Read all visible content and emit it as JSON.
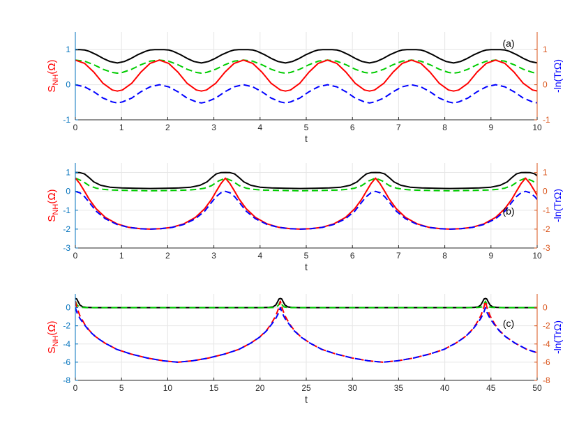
{
  "chart_data": [
    {
      "type": "line",
      "panel_label": "(a)",
      "xlabel": "t",
      "ylabel_left": "S",
      "ylabel_left_sub": "NH",
      "ylabel_left_suffix": "(Ω)",
      "ylabel_right": "-ln(TrΩ)",
      "xlim": [
        0,
        10
      ],
      "ylim": [
        -1,
        1.5
      ],
      "x_ticks": [
        0,
        1,
        2,
        3,
        4,
        5,
        6,
        7,
        8,
        9,
        10
      ],
      "y_ticks_left": [
        -1,
        0,
        1
      ],
      "y_ticks_right": [
        -1,
        0,
        1
      ],
      "grid": true,
      "period": 1.82,
      "series": [
        {
          "color": "#000000",
          "style": "solid",
          "x": [
            0,
            0.1,
            0.2,
            0.3,
            0.45,
            0.6,
            0.75,
            0.91,
            1.06,
            1.21,
            1.36,
            1.52,
            1.62,
            1.72,
            1.82
          ],
          "y": [
            1.0,
            1.0,
            0.99,
            0.95,
            0.86,
            0.75,
            0.66,
            0.62,
            0.66,
            0.75,
            0.86,
            0.95,
            0.99,
            1.0,
            1.0
          ]
        },
        {
          "color": "#00cc00",
          "style": "dashed",
          "x": [
            0,
            0.2,
            0.4,
            0.6,
            0.8,
            0.91,
            1.02,
            1.22,
            1.42,
            1.62,
            1.82
          ],
          "y": [
            0.7,
            0.67,
            0.57,
            0.44,
            0.35,
            0.33,
            0.35,
            0.44,
            0.57,
            0.67,
            0.7
          ]
        },
        {
          "color": "#ff0000",
          "style": "solid",
          "x": [
            0,
            0.2,
            0.4,
            0.6,
            0.8,
            0.91,
            1.02,
            1.22,
            1.42,
            1.62,
            1.82
          ],
          "y": [
            0.7,
            0.61,
            0.36,
            0.04,
            -0.15,
            -0.18,
            -0.15,
            0.04,
            0.36,
            0.61,
            0.7
          ]
        },
        {
          "color": "#0000ff",
          "style": "dashed",
          "x": [
            0,
            0.2,
            0.4,
            0.6,
            0.8,
            0.91,
            1.02,
            1.22,
            1.42,
            1.62,
            1.82
          ],
          "y": [
            0.0,
            -0.06,
            -0.2,
            -0.38,
            -0.49,
            -0.52,
            -0.49,
            -0.38,
            -0.2,
            -0.06,
            0.0
          ]
        }
      ]
    },
    {
      "type": "line",
      "panel_label": "(b)",
      "xlabel": "t",
      "ylabel_left": "S",
      "ylabel_left_sub": "NH",
      "ylabel_left_suffix": "(Ω)",
      "ylabel_right": "-ln(TrΩ)",
      "xlim": [
        0,
        10
      ],
      "ylim": [
        -3,
        1.5
      ],
      "x_ticks": [
        0,
        1,
        2,
        3,
        4,
        5,
        6,
        7,
        8,
        9,
        10
      ],
      "y_ticks_left": [
        -3,
        -2,
        -1,
        0,
        1
      ],
      "y_ticks_right": [
        -3,
        -2,
        -1,
        0,
        1
      ],
      "grid": true,
      "period": 3.25,
      "series": [
        {
          "color": "#000000",
          "style": "solid",
          "x": [
            0,
            0.1,
            0.2,
            0.3,
            0.4,
            0.55,
            0.75,
            1.0,
            1.3,
            1.62,
            1.95,
            2.25,
            2.5,
            2.7,
            2.85,
            2.95,
            3.05,
            3.15,
            3.25
          ],
          "y": [
            1.0,
            0.99,
            0.92,
            0.72,
            0.5,
            0.32,
            0.22,
            0.18,
            0.16,
            0.15,
            0.16,
            0.18,
            0.22,
            0.32,
            0.5,
            0.72,
            0.92,
            0.99,
            1.0
          ]
        },
        {
          "color": "#00cc00",
          "style": "dashed",
          "x": [
            0,
            0.15,
            0.3,
            0.45,
            0.6,
            0.8,
            1.1,
            1.4,
            1.62,
            1.85,
            2.15,
            2.45,
            2.65,
            2.8,
            2.95,
            3.1,
            3.25
          ],
          "y": [
            0.7,
            0.55,
            0.3,
            0.17,
            0.11,
            0.07,
            0.05,
            0.04,
            0.03,
            0.04,
            0.05,
            0.07,
            0.11,
            0.17,
            0.3,
            0.55,
            0.7
          ]
        },
        {
          "color": "#ff0000",
          "style": "solid",
          "x": [
            0,
            0.1,
            0.2,
            0.3,
            0.45,
            0.65,
            0.9,
            1.15,
            1.4,
            1.62,
            1.85,
            2.1,
            2.35,
            2.6,
            2.8,
            2.95,
            3.05,
            3.15,
            3.25
          ],
          "y": [
            0.7,
            0.4,
            0.0,
            -0.42,
            -0.92,
            -1.38,
            -1.72,
            -1.9,
            -1.98,
            -2.0,
            -1.98,
            -1.9,
            -1.72,
            -1.38,
            -0.92,
            -0.42,
            0.0,
            0.4,
            0.7
          ]
        },
        {
          "color": "#0000ff",
          "style": "dashed",
          "x": [
            0,
            0.1,
            0.2,
            0.3,
            0.45,
            0.65,
            0.9,
            1.15,
            1.4,
            1.62,
            1.85,
            2.1,
            2.35,
            2.6,
            2.8,
            2.95,
            3.05,
            3.15,
            3.25
          ],
          "y": [
            0.0,
            -0.08,
            -0.28,
            -0.58,
            -1.05,
            -1.45,
            -1.75,
            -1.91,
            -1.98,
            -2.0,
            -1.98,
            -1.91,
            -1.75,
            -1.45,
            -1.05,
            -0.58,
            -0.28,
            -0.08,
            0.0
          ]
        }
      ]
    },
    {
      "type": "line",
      "panel_label": "(c)",
      "xlabel": "t",
      "ylabel_left": "S",
      "ylabel_left_sub": "NH",
      "ylabel_left_suffix": "(Ω)",
      "ylabel_right": "-ln(TrΩ)",
      "xlim": [
        0,
        50
      ],
      "ylim": [
        -8,
        1.5
      ],
      "x_ticks": [
        0,
        5,
        10,
        15,
        20,
        25,
        30,
        35,
        40,
        45,
        50
      ],
      "y_ticks_left": [
        -8,
        -6,
        -4,
        -2,
        0
      ],
      "y_ticks_right": [
        -8,
        -6,
        -4,
        -2,
        0
      ],
      "grid": true,
      "period": 22.2,
      "series": [
        {
          "color": "#000000",
          "style": "solid",
          "x": [
            0,
            0.15,
            0.3,
            0.5,
            0.8,
            1.2,
            2.0,
            5.0,
            11.1,
            17.2,
            20.2,
            21.0,
            21.4,
            21.7,
            21.9,
            22.05,
            22.2
          ],
          "y": [
            1.0,
            0.95,
            0.65,
            0.28,
            0.08,
            0.02,
            0.0,
            0.0,
            0.0,
            0.0,
            0.0,
            0.02,
            0.08,
            0.28,
            0.65,
            0.95,
            1.0
          ]
        },
        {
          "color": "#00cc00",
          "style": "dashed",
          "x": [
            0,
            0.2,
            0.4,
            0.7,
            1.2,
            3.0,
            11.1,
            19.2,
            21.0,
            21.5,
            21.8,
            22.0,
            22.2
          ],
          "y": [
            0.7,
            0.28,
            0.08,
            0.02,
            0.0,
            0.0,
            0.0,
            0.0,
            0.0,
            0.02,
            0.08,
            0.28,
            0.7
          ]
        },
        {
          "color": "#ff0000",
          "style": "dashed",
          "x": [
            0,
            0.2,
            0.5,
            1.0,
            1.5,
            2.2,
            3.2,
            4.5,
            6.0,
            7.8,
            9.5,
            11.1,
            12.7,
            14.4,
            16.2,
            17.7,
            19.0,
            20.0,
            20.7,
            21.2,
            21.7,
            22.0,
            22.2
          ],
          "y": [
            0.7,
            -0.1,
            -0.9,
            -1.8,
            -2.5,
            -3.2,
            -3.9,
            -4.6,
            -5.1,
            -5.55,
            -5.85,
            -6.0,
            -5.85,
            -5.55,
            -5.1,
            -4.6,
            -3.9,
            -3.2,
            -2.5,
            -1.8,
            -0.9,
            -0.1,
            0.7
          ]
        },
        {
          "color": "#0000ff",
          "style": "dashed",
          "x": [
            0,
            0.2,
            0.5,
            1.0,
            1.5,
            2.2,
            3.2,
            4.5,
            6.0,
            7.8,
            9.5,
            11.1,
            12.7,
            14.4,
            16.2,
            17.7,
            19.0,
            20.0,
            20.7,
            21.2,
            21.7,
            22.0,
            22.2
          ],
          "y": [
            0.0,
            -0.6,
            -1.2,
            -1.9,
            -2.55,
            -3.22,
            -3.9,
            -4.6,
            -5.1,
            -5.55,
            -5.85,
            -6.0,
            -5.85,
            -5.55,
            -5.1,
            -4.6,
            -3.9,
            -3.22,
            -2.55,
            -1.9,
            -1.2,
            -0.6,
            0.0
          ]
        }
      ]
    }
  ],
  "colors": {
    "left_axis": "#0071bc",
    "right_axis": "#d95319",
    "ylabel_left_text": "#ff0000",
    "ylabel_right_text": "#0000ff",
    "grid": "#e6e6e6"
  }
}
